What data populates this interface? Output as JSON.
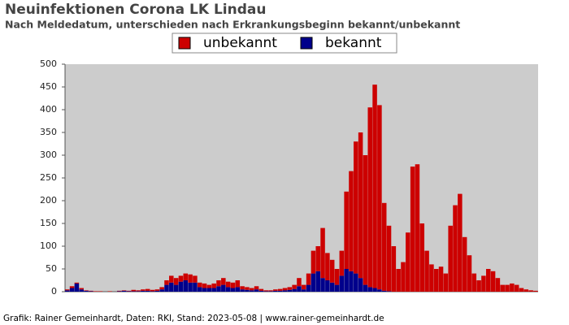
{
  "chart_data": {
    "type": "stacked_bar",
    "title": "Neuinfektionen Corona LK Lindau",
    "subtitle": "Nach Meldedatum, unterschieden nach Erkrankungsbeginn bekannt/unbekannt",
    "footer": "Grafik: Rainer Gemeinhardt, Daten: RKI, Stand: 2023-05-08 | www.rainer-gemeinhardt.de",
    "categories": [
      null,
      null,
      null,
      null,
      null,
      null,
      null,
      null,
      null,
      null,
      null,
      null,
      null,
      null,
      null,
      null,
      null,
      null,
      null,
      null,
      null,
      null,
      null,
      null,
      null,
      null,
      null,
      null,
      null,
      null,
      null,
      null,
      null,
      null,
      null,
      null,
      null,
      null,
      null,
      null,
      null,
      null,
      null,
      null,
      null,
      null,
      null,
      null,
      null,
      null,
      null,
      null,
      null,
      null,
      null,
      null,
      null,
      null,
      null,
      null,
      null,
      null,
      null,
      null,
      null,
      null,
      null,
      null,
      null,
      null,
      null,
      null,
      null,
      null,
      null,
      null,
      null,
      null,
      null,
      null,
      null,
      null,
      null,
      null,
      null,
      null,
      null,
      null,
      null,
      null,
      null,
      null,
      null,
      null,
      null,
      null,
      null,
      null,
      null,
      null
    ],
    "series": [
      {
        "name": "bekannt",
        "color": "#00008b",
        "values": [
          3,
          8,
          18,
          5,
          2,
          1,
          0,
          0,
          0,
          0,
          0,
          1,
          2,
          1,
          1,
          1,
          2,
          2,
          1,
          2,
          5,
          15,
          20,
          15,
          22,
          25,
          20,
          20,
          10,
          8,
          8,
          8,
          12,
          15,
          10,
          8,
          10,
          5,
          4,
          3,
          5,
          2,
          1,
          1,
          2,
          2,
          3,
          4,
          6,
          12,
          5,
          15,
          40,
          45,
          30,
          25,
          20,
          15,
          35,
          50,
          45,
          40,
          30,
          15,
          10,
          8,
          5,
          2,
          1,
          0,
          0,
          0,
          0,
          0,
          0,
          0,
          0,
          0,
          0,
          0,
          0,
          0,
          0,
          0,
          0,
          0,
          0,
          0,
          0,
          0,
          0,
          0,
          0,
          0,
          0,
          0,
          0,
          0,
          0,
          0
        ]
      },
      {
        "name": "unbekannt",
        "color": "#cc0000",
        "values": [
          2,
          4,
          2,
          3,
          1,
          1,
          1,
          1,
          0,
          1,
          0,
          1,
          1,
          1,
          3,
          2,
          3,
          4,
          3,
          3,
          5,
          10,
          15,
          15,
          13,
          15,
          18,
          15,
          10,
          10,
          7,
          10,
          13,
          15,
          12,
          12,
          15,
          7,
          6,
          5,
          7,
          4,
          2,
          2,
          3,
          4,
          5,
          6,
          9,
          18,
          10,
          25,
          50,
          55,
          110,
          60,
          50,
          35,
          55,
          170,
          220,
          290,
          320,
          285,
          395,
          447,
          405,
          193,
          144,
          100,
          50,
          65,
          130,
          275,
          280,
          150,
          90,
          60,
          50,
          55,
          40,
          145,
          190,
          215,
          120,
          80,
          40,
          25,
          35,
          50,
          45,
          30,
          15,
          15,
          18,
          15,
          8,
          5,
          3,
          2
        ]
      }
    ],
    "ylim": [
      0,
      500
    ],
    "yticks": [
      0,
      50,
      100,
      150,
      200,
      250,
      300,
      350,
      400,
      450,
      500
    ]
  }
}
